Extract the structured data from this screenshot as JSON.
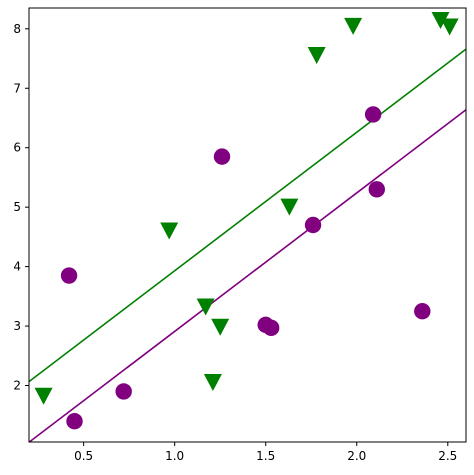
{
  "chart_data": {
    "type": "scatter",
    "title": "",
    "xlabel": "",
    "ylabel": "",
    "xlim": [
      0.2,
      2.6
    ],
    "ylim": [
      1.05,
      8.35
    ],
    "xticks": [
      0.5,
      1.0,
      1.5,
      2.0,
      2.5
    ],
    "xtick_labels": [
      "0.5",
      "1.0",
      "1.5",
      "2.0",
      "2.5"
    ],
    "yticks": [
      2,
      3,
      4,
      5,
      6,
      7,
      8
    ],
    "ytick_labels": [
      "2",
      "3",
      "4",
      "5",
      "6",
      "7",
      "8"
    ],
    "grid": false,
    "series": [
      {
        "marker": "circle",
        "color": "#800080",
        "points": [
          [
            0.42,
            3.85
          ],
          [
            0.45,
            1.4
          ],
          [
            0.72,
            1.9
          ],
          [
            1.26,
            5.85
          ],
          [
            1.5,
            3.02
          ],
          [
            1.53,
            2.97
          ],
          [
            1.76,
            4.7
          ],
          [
            2.09,
            6.56
          ],
          [
            2.11,
            5.3
          ],
          [
            2.36,
            3.25
          ]
        ],
        "fit_line": {
          "slope": 2.33,
          "intercept": 0.58
        }
      },
      {
        "marker": "triangle-down",
        "color": "#008000",
        "points": [
          [
            0.28,
            1.82
          ],
          [
            0.97,
            4.6
          ],
          [
            1.17,
            3.32
          ],
          [
            1.21,
            2.05
          ],
          [
            1.25,
            2.98
          ],
          [
            1.63,
            5.0
          ],
          [
            1.78,
            7.55
          ],
          [
            1.98,
            8.04
          ],
          [
            2.46,
            8.14
          ],
          [
            2.51,
            8.03
          ]
        ],
        "fit_line": {
          "slope": 2.33,
          "intercept": 1.6
        }
      }
    ]
  }
}
